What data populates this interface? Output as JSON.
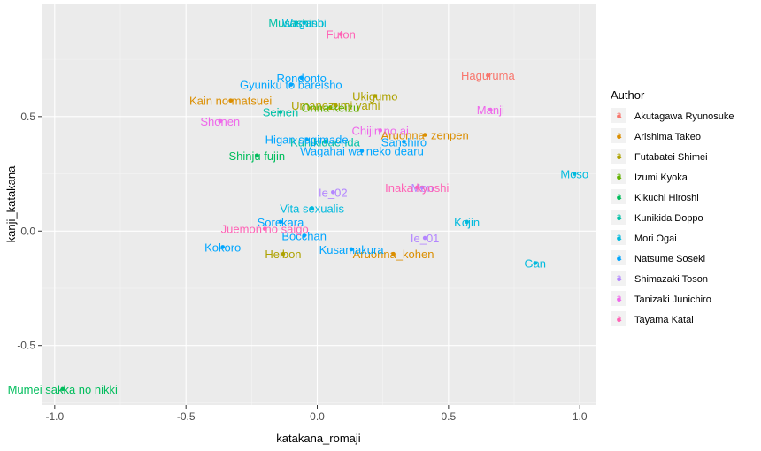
{
  "chart_data": {
    "type": "scatter",
    "title": "",
    "xlabel": "katakana_romaji",
    "ylabel": "kanji_katakana",
    "xlim": [
      -1.05,
      1.06
    ],
    "ylim": [
      -0.76,
      0.99
    ],
    "x_ticks": [
      -1.0,
      -0.5,
      0.0,
      0.5,
      1.0
    ],
    "x_tick_labels": [
      "-1.0",
      "-0.5",
      "0.0",
      "0.5",
      "1.0"
    ],
    "y_ticks": [
      -0.5,
      0.0,
      0.5
    ],
    "y_tick_labels": [
      "-0.5",
      "0.0",
      "0.5"
    ],
    "grid": true,
    "legend": {
      "title": "Author",
      "position": "right"
    },
    "series": [
      {
        "name": "Akutagawa Ryunosuke",
        "color": "#F8766D",
        "points": [
          {
            "x": 0.65,
            "y": 0.68,
            "label": "Haguruma"
          }
        ]
      },
      {
        "name": "Arishima Takeo",
        "color": "#DB8E00",
        "points": [
          {
            "x": -0.33,
            "y": 0.57,
            "label": "Kain no matsuei"
          },
          {
            "x": 0.41,
            "y": 0.42,
            "label": "Aruonna_zenpen"
          },
          {
            "x": 0.29,
            "y": -0.1,
            "label": "Aruonna_kohen"
          }
        ]
      },
      {
        "name": "Futabatei Shimei",
        "color": "#AEA200",
        "points": [
          {
            "x": 0.22,
            "y": 0.59,
            "label": "Ukigumo"
          },
          {
            "x": 0.07,
            "y": 0.55,
            "label": "Umanezumi yami"
          },
          {
            "x": -0.13,
            "y": -0.1,
            "label": "Heibon"
          }
        ]
      },
      {
        "name": "Izumi Kyoka",
        "color": "#64B200",
        "points": [
          {
            "x": 0.05,
            "y": 0.54,
            "label": "Onna keizu"
          }
        ]
      },
      {
        "name": "Kikuchi Hiroshi",
        "color": "#00BD5C",
        "points": [
          {
            "x": -0.23,
            "y": 0.33,
            "label": "Shinju fujin"
          },
          {
            "x": -0.97,
            "y": -0.69,
            "label": "Mumei sakka no nikki"
          }
        ]
      },
      {
        "name": "Kunikida Doppo",
        "color": "#00C1A7",
        "points": [
          {
            "x": -0.08,
            "y": 0.91,
            "label": "Musashino"
          },
          {
            "x": -0.14,
            "y": 0.52,
            "label": "Seinen"
          },
          {
            "x": 0.03,
            "y": 0.39,
            "label": "Kunikidaenda"
          }
        ]
      },
      {
        "name": "Mori Ogai",
        "color": "#00BADE",
        "points": [
          {
            "x": -0.05,
            "y": 0.91,
            "label": "Wagashi"
          },
          {
            "x": 0.98,
            "y": 0.25,
            "label": "Moso"
          },
          {
            "x": -0.02,
            "y": 0.1,
            "label": "Vita sexualis"
          },
          {
            "x": 0.57,
            "y": 0.04,
            "label": "Kojin"
          },
          {
            "x": 0.83,
            "y": -0.14,
            "label": "Gan"
          }
        ]
      },
      {
        "name": "Natsume Soseki",
        "color": "#00A6FF",
        "points": [
          {
            "x": -0.06,
            "y": 0.67,
            "label": "Rondonto"
          },
          {
            "x": -0.1,
            "y": 0.64,
            "label": "Gyuniku to bareisho"
          },
          {
            "x": -0.04,
            "y": 0.4,
            "label": "Higan sugimade"
          },
          {
            "x": 0.33,
            "y": 0.39,
            "label": "Sanshiro"
          },
          {
            "x": 0.17,
            "y": 0.35,
            "label": "Wagahai wa neko dearu"
          },
          {
            "x": -0.14,
            "y": 0.04,
            "label": "Sorekara"
          },
          {
            "x": -0.05,
            "y": -0.02,
            "label": "Bocchan"
          },
          {
            "x": -0.36,
            "y": -0.07,
            "label": "Kokoro"
          },
          {
            "x": 0.13,
            "y": -0.08,
            "label": "Kusamakura"
          }
        ]
      },
      {
        "name": "Shimazaki Toson",
        "color": "#B385FF",
        "points": [
          {
            "x": 0.06,
            "y": 0.17,
            "label": "Ie_02"
          },
          {
            "x": 0.4,
            "y": 0.19,
            "label": "Mon"
          },
          {
            "x": 0.41,
            "y": -0.03,
            "label": "Ie_01"
          }
        ]
      },
      {
        "name": "Tanizaki Junichiro",
        "color": "#EF67EB",
        "points": [
          {
            "x": -0.37,
            "y": 0.48,
            "label": "Shonen"
          },
          {
            "x": 0.66,
            "y": 0.53,
            "label": "Manji"
          },
          {
            "x": 0.24,
            "y": 0.44,
            "label": "Chijin no ai"
          }
        ]
      },
      {
        "name": "Tayama Katai",
        "color": "#FF63B6",
        "points": [
          {
            "x": 0.09,
            "y": 0.86,
            "label": "Futon"
          },
          {
            "x": 0.38,
            "y": 0.19,
            "label": "Inaka kyoshi"
          },
          {
            "x": -0.2,
            "y": 0.01,
            "label": "Juemon no saigo"
          }
        ]
      }
    ]
  }
}
